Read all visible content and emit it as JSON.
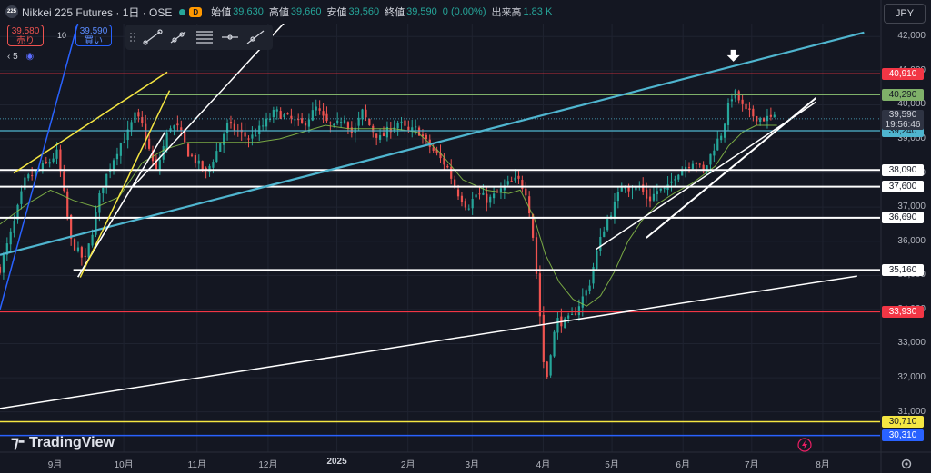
{
  "header": {
    "symbol_logo": "225",
    "title": "Nikkei 225 Futures · 1日 · OSE",
    "status_color": "#26a69a",
    "badge": "D",
    "open_label": "始値",
    "open": "39,630",
    "high_label": "高値",
    "high": "39,660",
    "low_label": "安値",
    "low": "39,560",
    "close_label": "終値",
    "close": "39,590",
    "change": "0 (0.00%)",
    "volume_label": "出来高",
    "volume": "1.83 K"
  },
  "trade": {
    "sell_price": "39,580",
    "sell_label": "売り",
    "spread": "10",
    "buy_price": "39,590",
    "buy_label": "買い"
  },
  "indicator_chip": "5",
  "currency": "JPY",
  "brand": "TradingView",
  "chart_data": {
    "type": "candlestick",
    "x_ticks": [
      {
        "label": "9月",
        "t": 12
      },
      {
        "label": "10月",
        "t": 42
      },
      {
        "label": "11月",
        "t": 74
      },
      {
        "label": "12月",
        "t": 105
      },
      {
        "label": "2025",
        "t": 135,
        "bold": true
      },
      {
        "label": "2月",
        "t": 166
      },
      {
        "label": "3月",
        "t": 194
      },
      {
        "label": "4月",
        "t": 225
      },
      {
        "label": "5月",
        "t": 255
      },
      {
        "label": "6月",
        "t": 286
      },
      {
        "label": "7月",
        "t": 316
      },
      {
        "label": "8月",
        "t": 347
      }
    ],
    "t_range": [
      -12,
      372
    ],
    "y_ticks": [
      31000,
      32000,
      33000,
      34000,
      35000,
      36000,
      37000,
      38000,
      39000,
      40000,
      41000,
      42000
    ],
    "y_tick_labels": [
      "31,000",
      "32,000",
      "33,000",
      "34,000",
      "35,000",
      "36,000",
      "37,000",
      "38,000",
      "39,000",
      "40,000",
      "41,000",
      "42,000"
    ],
    "ylim": [
      29820,
      42380
    ],
    "candles_anchor": [
      [
        -12,
        35200
      ],
      [
        -6,
        36500
      ],
      [
        -1,
        37800
      ],
      [
        3,
        38000
      ],
      [
        9,
        38300
      ],
      [
        13,
        38600
      ],
      [
        17,
        36900
      ],
      [
        19,
        36000
      ],
      [
        23,
        35600
      ],
      [
        25,
        35400
      ],
      [
        28,
        36200
      ],
      [
        32,
        37500
      ],
      [
        36,
        38200
      ],
      [
        40,
        38800
      ],
      [
        44,
        39200
      ],
      [
        47,
        39700
      ],
      [
        50,
        39400
      ],
      [
        53,
        38700
      ],
      [
        56,
        38000
      ],
      [
        59,
        38700
      ],
      [
        62,
        39400
      ],
      [
        66,
        39300
      ],
      [
        70,
        38600
      ],
      [
        74,
        38300
      ],
      [
        78,
        38000
      ],
      [
        83,
        38700
      ],
      [
        87,
        39400
      ],
      [
        92,
        39200
      ],
      [
        97,
        39000
      ],
      [
        103,
        39400
      ],
      [
        108,
        39800
      ],
      [
        114,
        39600
      ],
      [
        120,
        39400
      ],
      [
        126,
        39900
      ],
      [
        130,
        39500
      ],
      [
        134,
        39300
      ],
      [
        138,
        39700
      ],
      [
        142,
        39100
      ],
      [
        146,
        39800
      ],
      [
        150,
        39300
      ],
      [
        154,
        39000
      ],
      [
        158,
        39300
      ],
      [
        162,
        39500
      ],
      [
        166,
        39200
      ],
      [
        170,
        39300
      ],
      [
        174,
        38900
      ],
      [
        179,
        38500
      ],
      [
        183,
        38200
      ],
      [
        187,
        37500
      ],
      [
        192,
        37000
      ],
      [
        196,
        37400
      ],
      [
        201,
        37200
      ],
      [
        205,
        37400
      ],
      [
        210,
        37700
      ],
      [
        214,
        37800
      ],
      [
        218,
        37400
      ],
      [
        221,
        35900
      ],
      [
        224,
        33500
      ],
      [
        226,
        31700
      ],
      [
        228,
        32700
      ],
      [
        231,
        33700
      ],
      [
        234,
        33600
      ],
      [
        238,
        33800
      ],
      [
        241,
        34200
      ],
      [
        245,
        34700
      ],
      [
        248,
        35600
      ],
      [
        252,
        36500
      ],
      [
        257,
        37200
      ],
      [
        260,
        37800
      ],
      [
        263,
        37500
      ],
      [
        267,
        37600
      ],
      [
        271,
        37200
      ],
      [
        275,
        37500
      ],
      [
        279,
        37500
      ],
      [
        283,
        38000
      ],
      [
        287,
        38200
      ],
      [
        291,
        38400
      ],
      [
        295,
        38000
      ],
      [
        299,
        38700
      ],
      [
        303,
        39200
      ],
      [
        306,
        40000
      ],
      [
        308,
        40400
      ],
      [
        310,
        40200
      ],
      [
        313,
        39800
      ],
      [
        316,
        39700
      ],
      [
        320,
        39600
      ],
      [
        323,
        39600
      ],
      [
        327,
        39600
      ]
    ],
    "ma_anchor": [
      [
        -12,
        36500
      ],
      [
        0,
        37100
      ],
      [
        10,
        37500
      ],
      [
        20,
        37200
      ],
      [
        30,
        37000
      ],
      [
        40,
        37300
      ],
      [
        50,
        38300
      ],
      [
        60,
        38700
      ],
      [
        70,
        38900
      ],
      [
        80,
        38900
      ],
      [
        90,
        38900
      ],
      [
        100,
        38900
      ],
      [
        110,
        39000
      ],
      [
        120,
        39200
      ],
      [
        130,
        39400
      ],
      [
        140,
        39300
      ],
      [
        150,
        39300
      ],
      [
        160,
        39300
      ],
      [
        170,
        39200
      ],
      [
        180,
        38600
      ],
      [
        190,
        37800
      ],
      [
        200,
        37500
      ],
      [
        210,
        37400
      ],
      [
        215,
        37500
      ],
      [
        221,
        36700
      ],
      [
        226,
        35600
      ],
      [
        232,
        34800
      ],
      [
        238,
        34300
      ],
      [
        244,
        34100
      ],
      [
        250,
        34400
      ],
      [
        256,
        35100
      ],
      [
        262,
        36000
      ],
      [
        268,
        36600
      ],
      [
        275,
        37100
      ],
      [
        282,
        37400
      ],
      [
        290,
        37700
      ],
      [
        300,
        38200
      ],
      [
        306,
        38800
      ],
      [
        312,
        39200
      ],
      [
        318,
        39400
      ],
      [
        327,
        39400
      ]
    ],
    "horizontal_levels": [
      {
        "value": 40910,
        "label": "40,910",
        "color": "#f23645",
        "line_width": 1.2,
        "x_start_t": -12
      },
      {
        "value": 40290,
        "label": "40,290",
        "color": "#7fb069",
        "line_width": 1,
        "x_start_t": 48
      },
      {
        "value": 39240,
        "label": "39,240",
        "color": "#4fb5cf",
        "line_width": 1.2,
        "x_start_t": -12
      },
      {
        "value": 38090,
        "label": "38,090",
        "color": "#ffffff",
        "line_width": 2,
        "x_start_t": -12
      },
      {
        "value": 37600,
        "label": "37,600",
        "color": "#ffffff",
        "line_width": 2,
        "x_start_t": -12
      },
      {
        "value": 36690,
        "label": "36,690",
        "color": "#ffffff",
        "line_width": 2,
        "x_start_t": -12
      },
      {
        "value": 35160,
        "label": "35,160",
        "color": "#ffffff",
        "line_width": 2,
        "x_start_t": 20
      },
      {
        "value": 33930,
        "label": "33,930",
        "color": "#f23645",
        "line_width": 1.2,
        "x_start_t": -12
      },
      {
        "value": 30710,
        "label": "30,710",
        "color": "#f5e642",
        "line_width": 1.5,
        "x_start_t": -12
      },
      {
        "value": 30310,
        "label": "30,310",
        "color": "#2962ff",
        "line_width": 1.5,
        "x_start_t": -12
      }
    ],
    "current_price": {
      "value": 39590,
      "label": "39,590",
      "countdown": "19:56:46"
    },
    "trendlines": [
      {
        "color": "#4fb5cf",
        "width": 2.2,
        "p1": [
          -12,
          35600
        ],
        "p2": [
          365,
          42120
        ]
      },
      {
        "color": "#ffffff",
        "width": 1.5,
        "p1": [
          -12,
          31100
        ],
        "p2": [
          362,
          34980
        ]
      },
      {
        "color": "#ffffff",
        "width": 1.5,
        "p1": [
          46,
          37600
        ],
        "p2": [
          112,
          42400
        ]
      },
      {
        "color": "#ffffff",
        "width": 1.6,
        "p1": [
          22,
          34950
        ],
        "p2": [
          60,
          39200
        ]
      },
      {
        "color": "#ffffff",
        "width": 2,
        "p1": [
          270,
          36100
        ],
        "p2": [
          344,
          40200
        ]
      },
      {
        "color": "#ffffff",
        "width": 1.5,
        "p1": [
          248,
          35760
        ],
        "p2": [
          344,
          40080
        ]
      },
      {
        "color": "#f5e642",
        "width": 1.5,
        "p1": [
          -6,
          38000
        ],
        "p2": [
          61,
          40960
        ]
      },
      {
        "color": "#f5e642",
        "width": 1.5,
        "p1": [
          23,
          34940
        ],
        "p2": [
          62,
          40420
        ]
      },
      {
        "color": "#2962ff",
        "width": 1.5,
        "p1": [
          -12,
          34000
        ],
        "p2": [
          22,
          42400
        ]
      }
    ],
    "arrow_marker": {
      "t": 308,
      "value": 41400,
      "color": "#ffffff"
    },
    "up_color": "#26a69a",
    "down_color": "#ef5350",
    "ma_color": "#8bc34a"
  }
}
